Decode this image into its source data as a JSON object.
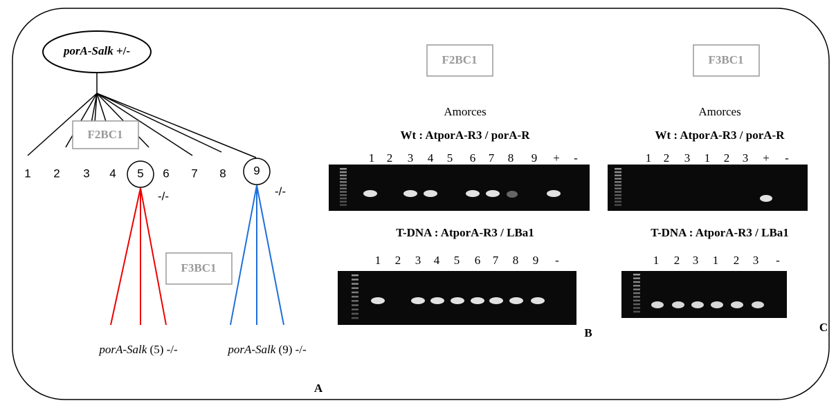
{
  "panel_a": {
    "label": "A",
    "root": {
      "name": "porA-Salk",
      "genotype": "+/-"
    },
    "f2_box": "F2BC1",
    "plants": [
      "1",
      "2",
      "3",
      "4",
      "5",
      "6",
      "7",
      "8",
      "9"
    ],
    "homozygous": [
      {
        "genotype": "-/-",
        "progeny_name": "porA-Salk",
        "progeny_id": "(5)",
        "progeny_genotype": "-/-"
      },
      {
        "genotype": "-/-",
        "progeny_name": "porA-Salk",
        "progeny_id": "(9)",
        "progeny_genotype": "-/-"
      }
    ],
    "f3_box": "F3BC1"
  },
  "panel_b": {
    "label": "B",
    "box": "F2BC1",
    "primers_title": "Amorces",
    "gels": [
      {
        "title": "Wt : AtporA-R3 / porA-R",
        "lanes": [
          "1",
          "2",
          "3",
          "4",
          "5",
          "6",
          "7",
          "8",
          "9",
          "+",
          "-"
        ]
      },
      {
        "title": "T-DNA : AtporA-R3 / LBa1",
        "lanes": [
          "1",
          "2",
          "3",
          "4",
          "5",
          "6",
          "7",
          "8",
          "9",
          "-"
        ]
      }
    ]
  },
  "panel_c": {
    "label": "C",
    "box": "F3BC1",
    "primers_title": "Amorces",
    "gels": [
      {
        "title": "Wt : AtporA-R3 / porA-R",
        "lanes": [
          "1",
          "2",
          "3",
          "1",
          "2",
          "3",
          "+",
          "-"
        ]
      },
      {
        "title": "T-DNA : AtporA-R3 / LBa1",
        "lanes": [
          "1",
          "2",
          "3",
          "1",
          "2",
          "3",
          "-"
        ]
      }
    ]
  }
}
